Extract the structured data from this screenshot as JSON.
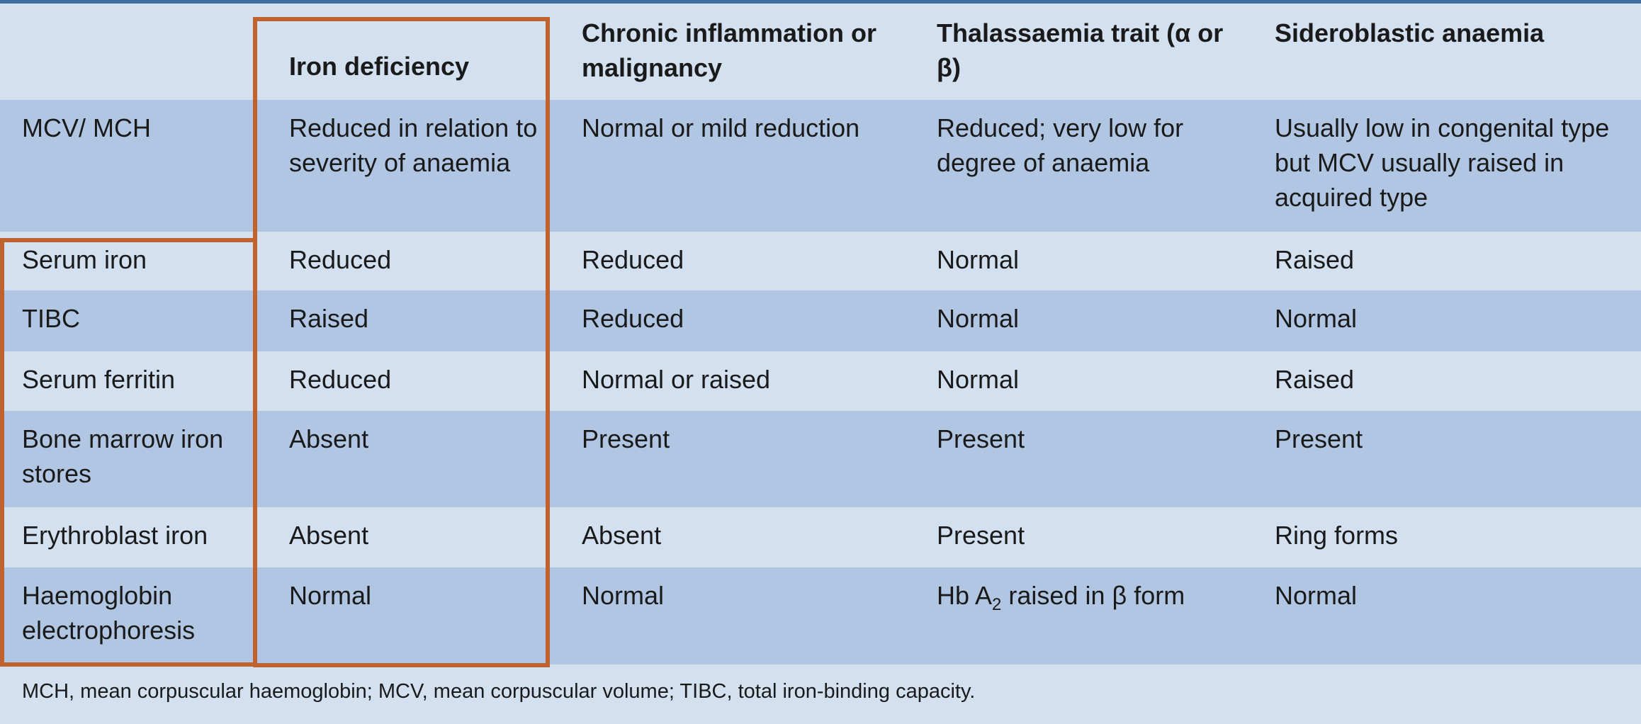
{
  "table": {
    "headers": [
      "",
      "Iron deficiency",
      "Chronic inflammation or malignancy",
      "Thalassaemia trait (α or β)",
      "Sideroblastic anaemia"
    ],
    "rows": [
      {
        "label": "MCV/ MCH",
        "cells": [
          "Reduced in relation to severity of anaemia",
          "Normal or mild reduction",
          "Reduced; very low for degree of anaemia",
          "Usually low in congenital type but MCV usually raised in acquired type"
        ]
      },
      {
        "label": "Serum iron",
        "cells": [
          "Reduced",
          "Reduced",
          "Normal",
          "Raised"
        ]
      },
      {
        "label": "TIBC",
        "cells": [
          "Raised",
          "Reduced",
          "Normal",
          "Normal"
        ]
      },
      {
        "label": "Serum ferritin",
        "cells": [
          "Reduced",
          "Normal or raised",
          "Normal",
          "Raised"
        ]
      },
      {
        "label": "Bone marrow iron stores",
        "cells": [
          "Absent",
          "Present",
          "Present",
          "Present"
        ]
      },
      {
        "label": "Erythroblast iron",
        "cells": [
          "Absent",
          "Absent",
          "Present",
          "Ring forms"
        ]
      },
      {
        "label": "Haemoglobin electrophoresis",
        "cells": [
          "Normal",
          "Normal",
          "",
          "Normal"
        ],
        "hb_a2": {
          "prefix": "Hb A",
          "subscript": "2",
          "suffix": " raised in β form"
        }
      }
    ]
  },
  "footnote": "MCH, mean corpuscular haemoglobin; MCV, mean corpuscular volume; TIBC, total iron-binding capacity.",
  "colors": {
    "row_light": "#d2e0f0",
    "row_dark": "#b0c6e2",
    "highlight_border": "#c0622d",
    "top_rule": "#3d6f9e"
  }
}
